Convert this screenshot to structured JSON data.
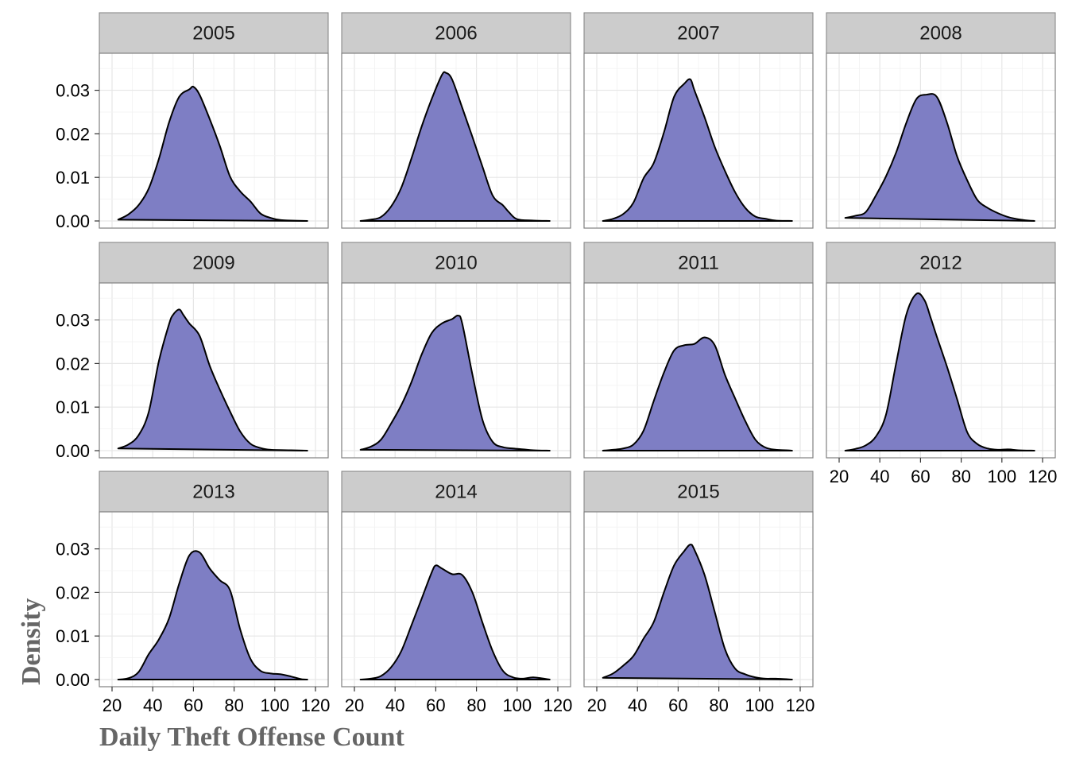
{
  "chart_data": {
    "type": "area",
    "facet_by": "year",
    "xlabel": "Daily Theft Offense Count",
    "ylabel": "Density",
    "xlim": [
      20,
      120
    ],
    "ylim": [
      0,
      0.0385
    ],
    "x_ticks": [
      20,
      40,
      60,
      80,
      100,
      120
    ],
    "x_tick_labels": [
      "20",
      "40",
      "60",
      "80",
      "100",
      "120"
    ],
    "y_ticks": [
      0.0,
      0.01,
      0.02,
      0.03
    ],
    "y_tick_labels": [
      "0.00",
      "0.01",
      "0.02",
      "0.03"
    ],
    "grid": true,
    "fill_color": "#7e7ec4",
    "line_color": "#000000",
    "strip_color": "#cccccc",
    "panels": [
      {
        "title": "2005",
        "x": [
          23,
          28,
          33,
          38,
          43,
          48,
          53,
          58,
          60,
          63,
          68,
          73,
          78,
          83,
          88,
          93,
          98,
          103,
          108,
          116
        ],
        "density": [
          0.0003,
          0.0015,
          0.0036,
          0.0074,
          0.0142,
          0.0226,
          0.0285,
          0.0302,
          0.0308,
          0.029,
          0.0234,
          0.0172,
          0.0102,
          0.0068,
          0.0045,
          0.0017,
          0.0007,
          0.0002,
          0.0001,
          0.0
        ]
      },
      {
        "title": "2006",
        "x": [
          23,
          28,
          33,
          38,
          43,
          48,
          53,
          58,
          63,
          65,
          68,
          73,
          78,
          83,
          88,
          93,
          96,
          100,
          108,
          116
        ],
        "density": [
          0.0,
          0.0003,
          0.0009,
          0.0033,
          0.0076,
          0.0143,
          0.0216,
          0.028,
          0.0335,
          0.034,
          0.0325,
          0.026,
          0.0193,
          0.0124,
          0.0058,
          0.0036,
          0.002,
          0.0004,
          0.0001,
          0.0
        ]
      },
      {
        "title": "2007",
        "x": [
          23,
          28,
          33,
          38,
          43,
          48,
          53,
          58,
          63,
          66,
          68,
          73,
          78,
          83,
          88,
          93,
          98,
          103,
          108,
          116
        ],
        "density": [
          0.0,
          0.0005,
          0.0016,
          0.0042,
          0.0098,
          0.0133,
          0.0203,
          0.0285,
          0.0315,
          0.0325,
          0.03,
          0.0238,
          0.017,
          0.0115,
          0.0066,
          0.003,
          0.001,
          0.0005,
          0.0001,
          0.0
        ]
      },
      {
        "title": "2008",
        "x": [
          23,
          28,
          33,
          38,
          43,
          48,
          53,
          58,
          63,
          68,
          73,
          78,
          83,
          88,
          93,
          98,
          103,
          108,
          113,
          116
        ],
        "density": [
          0.0007,
          0.0012,
          0.002,
          0.0058,
          0.0102,
          0.0157,
          0.0225,
          0.028,
          0.029,
          0.0285,
          0.0226,
          0.0148,
          0.0093,
          0.0048,
          0.003,
          0.0018,
          0.0009,
          0.0004,
          0.0001,
          0.0
        ]
      },
      {
        "title": "2009",
        "x": [
          23,
          28,
          33,
          38,
          43,
          48,
          50,
          53,
          55,
          58,
          63,
          68,
          73,
          78,
          83,
          88,
          93,
          98,
          108,
          116
        ],
        "density": [
          0.0005,
          0.0014,
          0.0035,
          0.0088,
          0.0205,
          0.029,
          0.0312,
          0.0324,
          0.0312,
          0.0292,
          0.0264,
          0.0195,
          0.014,
          0.009,
          0.0044,
          0.0016,
          0.0006,
          0.0002,
          0.0001,
          0.0
        ]
      },
      {
        "title": "2010",
        "x": [
          23,
          28,
          33,
          38,
          43,
          48,
          53,
          58,
          63,
          68,
          71,
          73,
          78,
          83,
          88,
          93,
          98,
          103,
          108,
          116
        ],
        "density": [
          0.0002,
          0.0009,
          0.0025,
          0.0062,
          0.0104,
          0.0157,
          0.022,
          0.027,
          0.0292,
          0.0302,
          0.031,
          0.0292,
          0.0175,
          0.007,
          0.002,
          0.0008,
          0.0005,
          0.0003,
          0.0001,
          0.0
        ]
      },
      {
        "title": "2011",
        "x": [
          23,
          28,
          33,
          38,
          43,
          48,
          53,
          58,
          63,
          68,
          73,
          78,
          83,
          88,
          93,
          98,
          103,
          108,
          113,
          116
        ],
        "density": [
          0.0,
          0.0002,
          0.0005,
          0.0014,
          0.0046,
          0.0114,
          0.0179,
          0.023,
          0.0242,
          0.0245,
          0.026,
          0.0242,
          0.0174,
          0.012,
          0.0068,
          0.0025,
          0.0007,
          0.0002,
          0.0001,
          0.0
        ]
      },
      {
        "title": "2012",
        "x": [
          23,
          28,
          33,
          38,
          43,
          48,
          53,
          58,
          62,
          65,
          68,
          73,
          78,
          83,
          88,
          93,
          98,
          103,
          108,
          116
        ],
        "density": [
          0.0,
          0.0004,
          0.0012,
          0.0032,
          0.0082,
          0.02,
          0.0312,
          0.036,
          0.0345,
          0.0305,
          0.0262,
          0.0193,
          0.0118,
          0.0042,
          0.0015,
          0.0005,
          0.0002,
          0.0003,
          0.0001,
          0.0
        ]
      },
      {
        "title": "2013",
        "x": [
          23,
          28,
          33,
          38,
          43,
          48,
          53,
          58,
          63,
          68,
          73,
          78,
          83,
          88,
          93,
          98,
          103,
          108,
          113,
          116
        ],
        "density": [
          0.0,
          0.0003,
          0.0017,
          0.0058,
          0.0092,
          0.014,
          0.022,
          0.0285,
          0.0292,
          0.0255,
          0.0228,
          0.0205,
          0.0115,
          0.0048,
          0.002,
          0.0014,
          0.0012,
          0.0007,
          0.0001,
          0.0
        ]
      },
      {
        "title": "2014",
        "x": [
          23,
          28,
          33,
          38,
          43,
          48,
          53,
          58,
          60,
          63,
          68,
          73,
          78,
          83,
          88,
          93,
          98,
          103,
          108,
          116
        ],
        "density": [
          0.0,
          0.0002,
          0.0008,
          0.0028,
          0.0065,
          0.0124,
          0.0185,
          0.0246,
          0.0262,
          0.0255,
          0.0242,
          0.024,
          0.02,
          0.013,
          0.0065,
          0.002,
          0.0005,
          0.0002,
          0.0005,
          0.0
        ]
      },
      {
        "title": "2015",
        "x": [
          23,
          28,
          33,
          38,
          43,
          48,
          53,
          58,
          63,
          66,
          68,
          73,
          78,
          83,
          88,
          93,
          98,
          103,
          108,
          116
        ],
        "density": [
          0.0004,
          0.0014,
          0.0032,
          0.0054,
          0.0094,
          0.0132,
          0.02,
          0.0262,
          0.0295,
          0.031,
          0.0298,
          0.024,
          0.0155,
          0.007,
          0.0025,
          0.0012,
          0.0005,
          0.0002,
          0.0002,
          0.0
        ]
      }
    ]
  }
}
